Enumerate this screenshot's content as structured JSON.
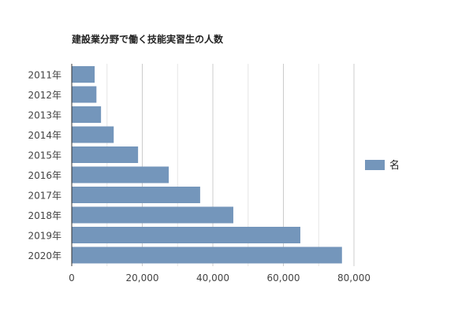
{
  "chart_data": {
    "type": "bar",
    "orientation": "horizontal",
    "title": "建設業分野で働く技能実習生の人数",
    "categories": [
      "2011年",
      "2012年",
      "2013年",
      "2014年",
      "2015年",
      "2016年",
      "2017年",
      "2018年",
      "2019年",
      "2020年"
    ],
    "series": [
      {
        "name": "名",
        "color": "#7496bb",
        "values": [
          6500,
          7000,
          8300,
          11900,
          18800,
          27500,
          36400,
          45800,
          64800,
          76600
        ]
      }
    ],
    "xlim": [
      0,
      80000
    ],
    "xticks": [
      0,
      20000,
      40000,
      60000,
      80000
    ],
    "xtick_labels": [
      "0",
      "20,000",
      "40,000",
      "60,000",
      "80,000"
    ],
    "grid": true,
    "legend_position": "right"
  }
}
